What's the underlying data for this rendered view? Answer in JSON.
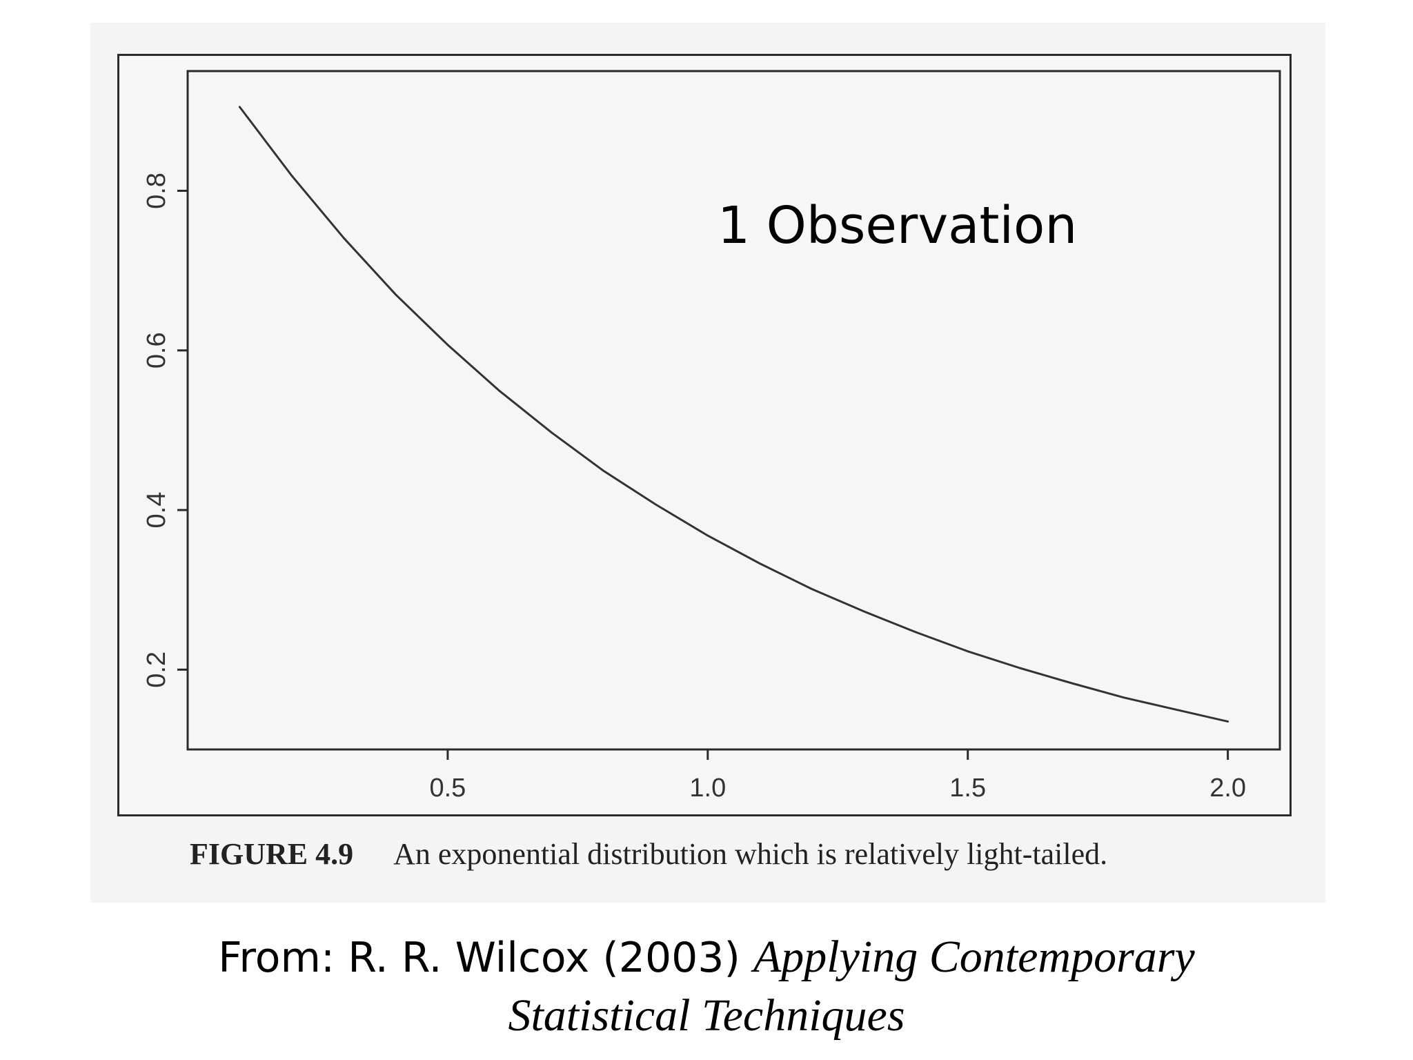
{
  "chart_data": {
    "type": "line",
    "title": "",
    "xlabel": "",
    "ylabel": "",
    "xlim": [
      0.0,
      2.1
    ],
    "ylim": [
      0.1,
      0.95
    ],
    "x_ticks": [
      0.5,
      1.0,
      1.5,
      2.0
    ],
    "x_tick_labels": [
      "0.5",
      "1.0",
      "1.5",
      "2.0"
    ],
    "y_ticks": [
      0.2,
      0.4,
      0.6,
      0.8
    ],
    "y_tick_labels": [
      "0.2",
      "0.4",
      "0.6",
      "0.8"
    ],
    "grid": false,
    "legend": "none",
    "annotation": "1 Observation",
    "series": [
      {
        "x": [
          0.1,
          0.2,
          0.3,
          0.4,
          0.5,
          0.6,
          0.7,
          0.8,
          0.9,
          1.0,
          1.1,
          1.2,
          1.3,
          1.4,
          1.5,
          1.6,
          1.7,
          1.8,
          1.9,
          2.0
        ],
        "values": [
          0.905,
          0.819,
          0.741,
          0.67,
          0.607,
          0.549,
          0.497,
          0.449,
          0.407,
          0.368,
          0.333,
          0.301,
          0.273,
          0.247,
          0.223,
          0.202,
          0.183,
          0.165,
          0.15,
          0.135
        ]
      }
    ]
  },
  "caption": {
    "figure_number": "FIGURE 4.9",
    "text": "An exponential distribution which is relatively light-tailed."
  },
  "source": {
    "prefix": "From: R. R. Wilcox (2003) ",
    "book_line1": "Applying Contemporary",
    "book_line2": "Statistical Techniques"
  },
  "colors": {
    "line": "#333333",
    "axis": "#2a2a2a"
  }
}
